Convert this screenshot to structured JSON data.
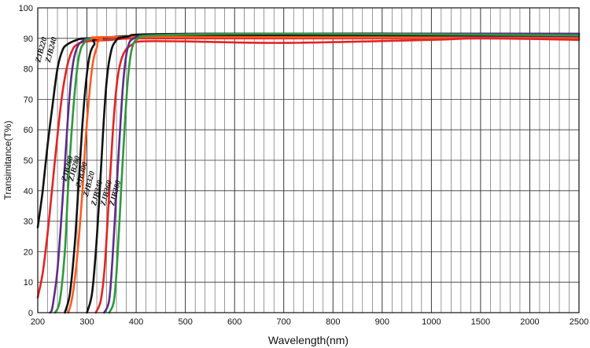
{
  "chart_data": {
    "type": "line",
    "title": "",
    "xlabel": "Wavelength(nm)",
    "ylabel": "Transimitance(T%)",
    "ylim": [
      0,
      100
    ],
    "x_ticks": [
      "200",
      "300",
      "400",
      "500",
      "600",
      "700",
      "800",
      "900",
      "1000",
      "1500",
      "2000",
      "2500"
    ],
    "y_ticks": [
      "0",
      "10",
      "20",
      "30",
      "40",
      "50",
      "60",
      "70",
      "80",
      "90",
      "100"
    ],
    "grid": true,
    "series": [
      {
        "name": "ZJB220",
        "color": "#111111",
        "points": [
          [
            200,
            28
          ],
          [
            210,
            40
          ],
          [
            220,
            55
          ],
          [
            230,
            68
          ],
          [
            240,
            80
          ],
          [
            250,
            86
          ],
          [
            260,
            88
          ],
          [
            280,
            89.5
          ],
          [
            300,
            90
          ],
          [
            400,
            90.5
          ],
          [
            500,
            91
          ],
          [
            700,
            91
          ],
          [
            900,
            91
          ],
          [
            1500,
            91
          ],
          [
            2500,
            91
          ]
        ]
      },
      {
        "name": "ZJB240",
        "color": "#e52222",
        "points": [
          [
            200,
            5
          ],
          [
            210,
            13
          ],
          [
            220,
            26
          ],
          [
            230,
            42
          ],
          [
            240,
            58
          ],
          [
            250,
            72
          ],
          [
            260,
            81
          ],
          [
            270,
            86
          ],
          [
            280,
            88
          ],
          [
            300,
            89
          ],
          [
            350,
            89.5
          ],
          [
            400,
            90
          ],
          [
            600,
            90
          ],
          [
            900,
            90
          ],
          [
            2500,
            90
          ]
        ]
      },
      {
        "name": "ZJB260",
        "color": "#5b2d8a",
        "points": [
          [
            225,
            0
          ],
          [
            230,
            2
          ],
          [
            240,
            14
          ],
          [
            250,
            36
          ],
          [
            258,
            56
          ],
          [
            265,
            72
          ],
          [
            272,
            82
          ],
          [
            280,
            87
          ],
          [
            290,
            89
          ],
          [
            310,
            90
          ],
          [
            400,
            90.5
          ],
          [
            700,
            90.5
          ],
          [
            1500,
            90.5
          ],
          [
            2500,
            90.5
          ]
        ]
      },
      {
        "name": "ZJB280",
        "color": "#2e9a3a",
        "points": [
          [
            235,
            0
          ],
          [
            245,
            4
          ],
          [
            255,
            20
          ],
          [
            262,
            42
          ],
          [
            270,
            62
          ],
          [
            278,
            77
          ],
          [
            285,
            85
          ],
          [
            295,
            88.5
          ],
          [
            320,
            90
          ],
          [
            500,
            90.5
          ],
          [
            2500,
            90
          ]
        ]
      },
      {
        "name": "ZJB300",
        "color": "#111111",
        "points": [
          [
            255,
            0
          ],
          [
            265,
            6
          ],
          [
            275,
            22
          ],
          [
            283,
            42
          ],
          [
            290,
            60
          ],
          [
            297,
            74
          ],
          [
            305,
            84
          ],
          [
            315,
            88
          ],
          [
            330,
            90
          ],
          [
            500,
            91
          ],
          [
            2500,
            91
          ]
        ]
      },
      {
        "name": "ZJB320",
        "color": "#ff5a1f",
        "points": [
          [
            262,
            0
          ],
          [
            270,
            5
          ],
          [
            280,
            18
          ],
          [
            290,
            38
          ],
          [
            297,
            56
          ],
          [
            305,
            72
          ],
          [
            312,
            82
          ],
          [
            320,
            87
          ],
          [
            330,
            89.5
          ],
          [
            400,
            90.5
          ],
          [
            2500,
            90
          ]
        ]
      },
      {
        "name": "ZJB340",
        "color": "#111111",
        "points": [
          [
            300,
            0
          ],
          [
            310,
            6
          ],
          [
            318,
            20
          ],
          [
            326,
            40
          ],
          [
            333,
            60
          ],
          [
            340,
            76
          ],
          [
            348,
            85
          ],
          [
            358,
            89
          ],
          [
            380,
            90.5
          ],
          [
            500,
            91.5
          ],
          [
            2500,
            91.5
          ]
        ]
      },
      {
        "name": "ZJB360",
        "color": "#e52222",
        "points": [
          [
            318,
            0
          ],
          [
            328,
            4
          ],
          [
            336,
            15
          ],
          [
            344,
            36
          ],
          [
            352,
            58
          ],
          [
            360,
            74
          ],
          [
            368,
            82
          ],
          [
            378,
            86
          ],
          [
            392,
            88
          ],
          [
            410,
            89
          ],
          [
            500,
            89
          ],
          [
            700,
            88.5
          ],
          [
            1000,
            89.5
          ],
          [
            1500,
            90
          ],
          [
            2500,
            89.5
          ]
        ]
      },
      {
        "name": "ZJB380",
        "color": "#5b2d8a",
        "points": [
          [
            335,
            0
          ],
          [
            345,
            4
          ],
          [
            352,
            18
          ],
          [
            360,
            40
          ],
          [
            368,
            62
          ],
          [
            375,
            78
          ],
          [
            383,
            87
          ],
          [
            395,
            90
          ],
          [
            430,
            91
          ],
          [
            600,
            91.5
          ],
          [
            2500,
            91.5
          ]
        ]
      },
      {
        "name": "ZJB390",
        "color": "#2e9a3a",
        "points": [
          [
            345,
            0
          ],
          [
            355,
            4
          ],
          [
            362,
            18
          ],
          [
            370,
            42
          ],
          [
            377,
            62
          ],
          [
            384,
            78
          ],
          [
            392,
            87
          ],
          [
            405,
            90
          ],
          [
            440,
            91
          ],
          [
            700,
            91.5
          ],
          [
            2500,
            91
          ]
        ]
      }
    ],
    "curve_labels": [
      "ZJB220",
      "ZJB240",
      "ZJB260",
      "ZJB280",
      "ZJB300",
      "ZJB320",
      "ZJB340",
      "ZJB360",
      "ZJB380"
    ]
  }
}
